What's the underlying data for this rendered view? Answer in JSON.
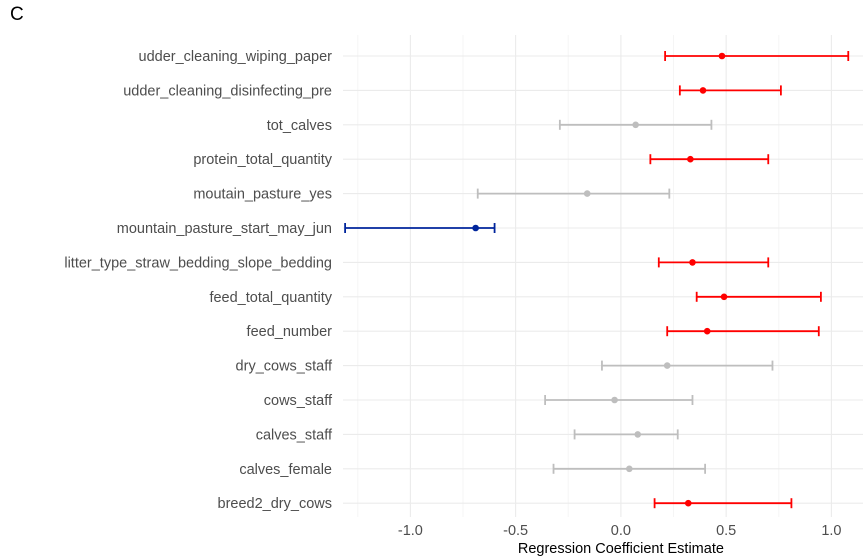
{
  "panel_label": "C",
  "colors": {
    "positive": "#ff0000",
    "negative": "#00259c",
    "nonsignificant": "#bebebe",
    "grid": "#ebebeb"
  },
  "chart_data": {
    "type": "scatter",
    "style": "forest plot (point estimate with horizontal error bars)",
    "xlabel": "Regression Coefficient Estimate",
    "ylabel": "",
    "xlim": [
      -1.32,
      1.15
    ],
    "xticks": [
      -1.0,
      -0.5,
      0.0,
      0.5,
      1.0
    ],
    "xtick_labels": [
      "-1.0",
      "-0.5",
      "0.0",
      "0.5",
      "1.0"
    ],
    "grid": true,
    "legend": "none",
    "categories": [
      "udder_cleaning_wiping_paper",
      "udder_cleaning_disinfecting_pre",
      "tot_calves",
      "protein_total_quantity",
      "moutain_pasture_yes",
      "mountain_pasture_start_may_jun",
      "litter_type_straw_bedding_slope_bedding",
      "feed_total_quantity",
      "feed_number",
      "dry_cows_staff",
      "cows_staff",
      "calves_staff",
      "calves_female",
      "breed2_dry_cows"
    ],
    "estimates": [
      0.48,
      0.39,
      0.07,
      0.33,
      -0.16,
      -0.69,
      0.34,
      0.49,
      0.41,
      0.22,
      -0.03,
      0.08,
      0.04,
      0.32
    ],
    "ci_low": [
      0.21,
      0.28,
      -0.29,
      0.14,
      -0.68,
      -1.31,
      0.18,
      0.36,
      0.22,
      -0.09,
      -0.36,
      -0.22,
      -0.32,
      0.16
    ],
    "ci_high": [
      1.08,
      0.76,
      0.43,
      0.7,
      0.23,
      -0.6,
      0.7,
      0.95,
      0.94,
      0.72,
      0.34,
      0.27,
      0.4,
      0.81
    ],
    "significance": [
      "positive",
      "positive",
      "ns",
      "positive",
      "ns",
      "negative",
      "positive",
      "positive",
      "positive",
      "ns",
      "ns",
      "ns",
      "ns",
      "positive"
    ]
  }
}
